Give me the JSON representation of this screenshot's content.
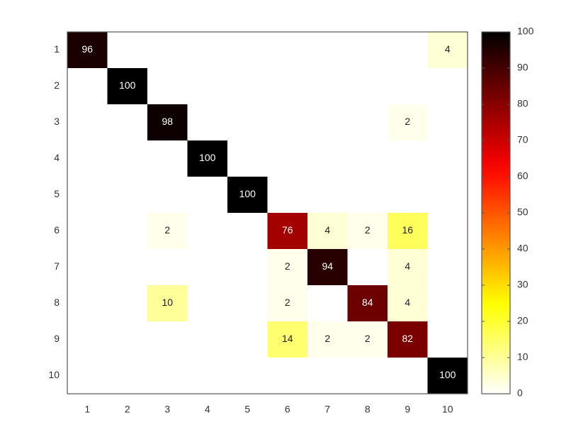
{
  "chart_data": {
    "type": "heatmap",
    "x": [
      1,
      2,
      3,
      4,
      5,
      6,
      7,
      8,
      9,
      10
    ],
    "y": [
      1,
      2,
      3,
      4,
      5,
      6,
      7,
      8,
      9,
      10
    ],
    "values": [
      [
        96,
        0,
        0,
        0,
        0,
        0,
        0,
        0,
        0,
        4
      ],
      [
        0,
        100,
        0,
        0,
        0,
        0,
        0,
        0,
        0,
        0
      ],
      [
        0,
        0,
        98,
        0,
        0,
        0,
        0,
        0,
        2,
        0
      ],
      [
        0,
        0,
        0,
        100,
        0,
        0,
        0,
        0,
        0,
        0
      ],
      [
        0,
        0,
        0,
        0,
        100,
        0,
        0,
        0,
        0,
        0
      ],
      [
        0,
        0,
        2,
        0,
        0,
        76,
        4,
        2,
        16,
        0
      ],
      [
        0,
        0,
        0,
        0,
        0,
        2,
        94,
        0,
        4,
        0
      ],
      [
        0,
        0,
        10,
        0,
        0,
        2,
        0,
        84,
        4,
        0
      ],
      [
        0,
        0,
        0,
        0,
        0,
        14,
        2,
        2,
        82,
        0
      ],
      [
        0,
        0,
        0,
        0,
        0,
        0,
        0,
        0,
        0,
        100
      ]
    ],
    "colormap": "hot-reversed",
    "clim": [
      0,
      100
    ],
    "colorbar_ticks": [
      0,
      10,
      20,
      30,
      40,
      50,
      60,
      70,
      80,
      90,
      100
    ]
  }
}
